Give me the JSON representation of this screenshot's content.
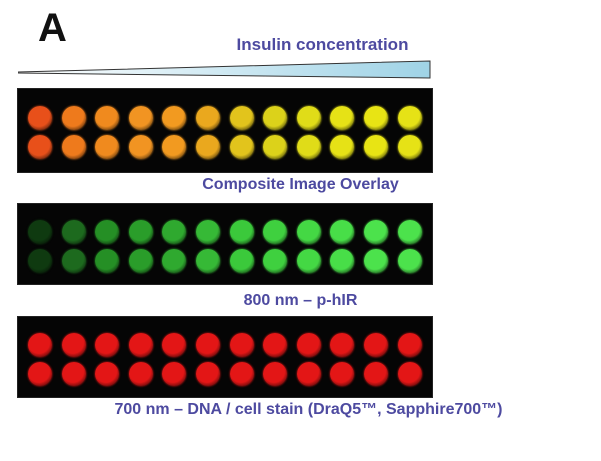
{
  "panel_label": "A",
  "title": "Insulin concentration",
  "plates": [
    {
      "id": "composite",
      "caption": "Composite Image Overlay",
      "rows": 2,
      "cols": 12,
      "well_colors": [
        "#e8501a",
        "#ee7a1c",
        "#f08a1e",
        "#f19422",
        "#f29a20",
        "#eaa81e",
        "#e2c41c",
        "#dcd21a",
        "#e0dc18",
        "#e6e216",
        "#e8e414",
        "#e6e216"
      ]
    },
    {
      "id": "800",
      "caption": "800 nm – p-hIR",
      "rows": 2,
      "cols": 12,
      "well_colors": [
        "#0f3a10",
        "#1d6a1e",
        "#258f25",
        "#2a9d2a",
        "#2fa92f",
        "#36b936",
        "#3bc93b",
        "#3fd03f",
        "#44d844",
        "#48de48",
        "#4ce24c",
        "#4ce24c"
      ]
    },
    {
      "id": "700",
      "caption": "700 nm – DNA / cell stain (DraQ5™, Sapphire700™)",
      "rows": 2,
      "cols": 12,
      "well_colors": [
        "#e31616",
        "#e31616",
        "#e31616",
        "#e31616",
        "#e31616",
        "#e31616",
        "#e31616",
        "#e31616",
        "#e31616",
        "#e31616",
        "#e31616",
        "#e31616"
      ]
    }
  ],
  "colors": {
    "caption_text": "#4d4aa0",
    "wedge_fill_start": "#ffffff",
    "wedge_fill_end": "#9fd3e6",
    "plate_background": "#050505"
  }
}
